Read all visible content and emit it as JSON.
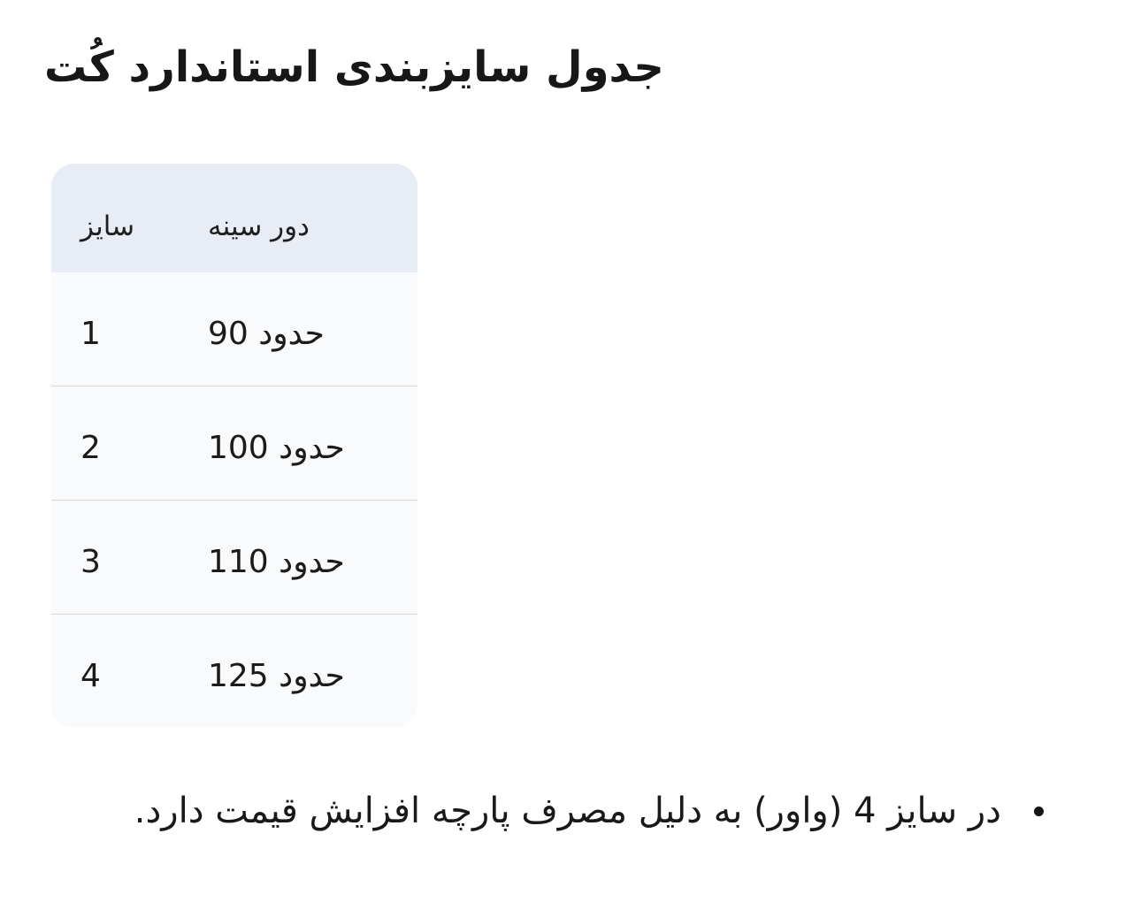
{
  "title": {
    "text": "جدول سایزبندی استاندارد کُت"
  },
  "size_table": {
    "columns": [
      {
        "id": "size",
        "label": "سایز"
      },
      {
        "id": "chest",
        "label": "دور سینه"
      }
    ],
    "rows": [
      {
        "size": "1",
        "chest": "حدود 90"
      },
      {
        "size": "2",
        "chest": "حدود 100"
      },
      {
        "size": "3",
        "chest": "حدود 110"
      },
      {
        "size": "4",
        "chest": "حدود 125"
      }
    ],
    "colors": {
      "header_bg": "#e8ecf4",
      "body_bg": "#f9fafc",
      "divider": "#d9d9d9",
      "text": "#1b1b1b"
    }
  },
  "notes": {
    "items": [
      {
        "text": "در سایز 4 (واور) به دلیل مصرف پارچه افزایش قیمت دارد."
      }
    ]
  }
}
